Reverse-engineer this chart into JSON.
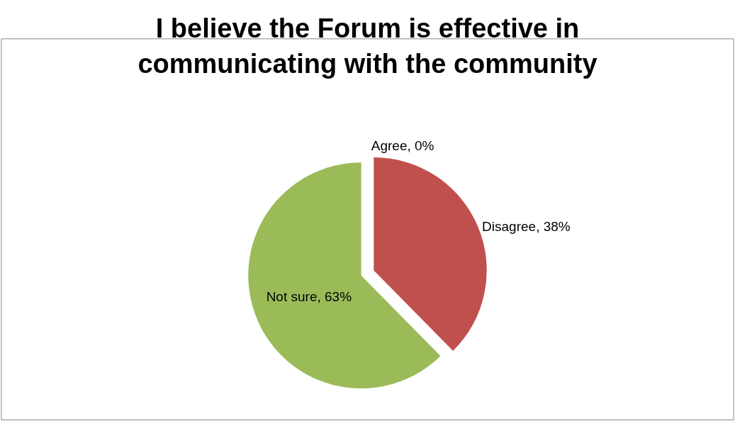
{
  "chart_data": {
    "type": "pie",
    "title": "I believe the Forum is effective in communicating with the community",
    "categories": [
      "Agree, 0%",
      "Disagree, 38%",
      "Not sure, 63%"
    ],
    "values": [
      0,
      38,
      63
    ],
    "colors": [
      "#4f81bd",
      "#c0504d",
      "#9bbb59"
    ],
    "legend": false
  }
}
